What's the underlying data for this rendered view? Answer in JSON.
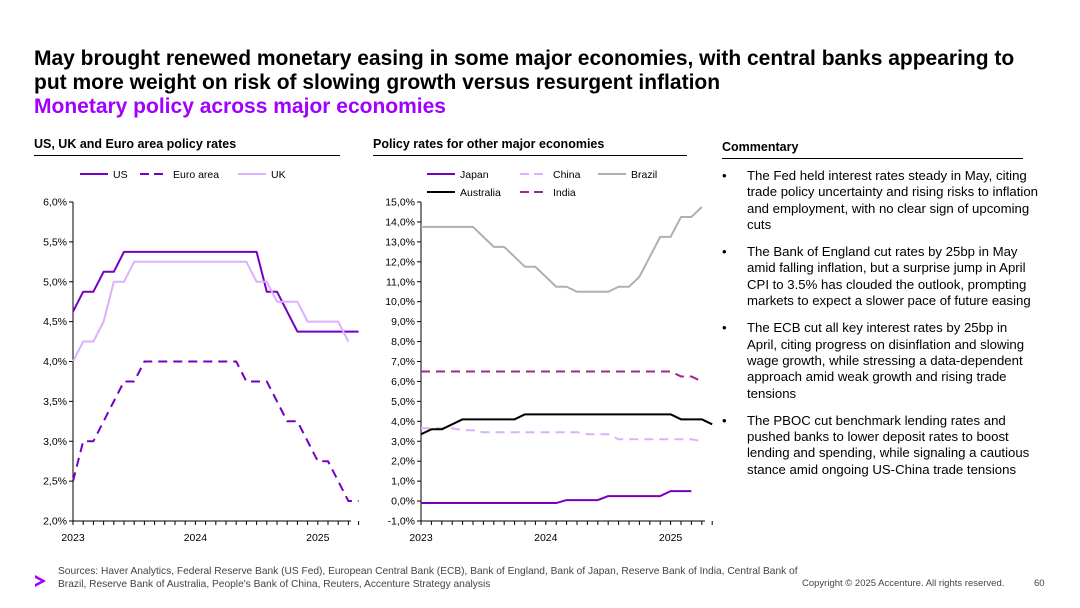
{
  "title": "May brought renewed monetary easing in some major economies, with central banks appearing to put more weight on risk of slowing growth versus resurgent inflation",
  "subtitle": "Monetary policy across major economies",
  "left_panel": {
    "heading": "US, UK and Euro area policy rates"
  },
  "middle_panel": {
    "heading": "Policy rates for other major economies"
  },
  "commentary": {
    "heading": "Commentary",
    "bullet": "•",
    "items": [
      "The Fed held interest rates steady in May, citing trade policy uncertainty and rising risks to inflation and employment, with no clear sign of upcoming cuts",
      "The Bank of England cut rates by 25bp in May amid falling inflation, but a surprise jump in April CPI to 3.5% has clouded the outlook, prompting markets to expect a slower pace of future easing",
      "The ECB cut all key interest rates by 25bp in April, citing progress on disinflation and slowing wage growth, while stressing a data-dependent approach amid weak growth and rising trade tensions",
      "The PBOC cut benchmark lending rates and pushed banks to lower deposit rates to boost lending and spending, while signaling a cautious stance amid ongoing US-China trade tensions"
    ]
  },
  "footer": {
    "sources": "Sources: Haver Analytics, Federal Reserve Bank (US Fed), European Central Bank (ECB), Bank of England, Bank of Japan, Reserve Bank of India, Central Bank of Brazil, Reserve Bank of Australia, People's Bank of China, Reuters, Accenture Strategy analysis",
    "copyright": "Copyright © 2025 Accenture. All rights reserved.",
    "page": "60"
  },
  "colors": {
    "accent": "#a100ff",
    "dark_purple": "#7500c0",
    "light_purple": "#dcafff",
    "gray": "#b0b0b0",
    "black": "#000000",
    "indian_purple": "#a0278c"
  },
  "chart_data": [
    {
      "type": "line",
      "title": "US, UK and Euro area policy rates",
      "x_labels": [
        "2023",
        "2024",
        "2025"
      ],
      "x_label_index": [
        0,
        12,
        24
      ],
      "ylim": [
        2.0,
        6.0
      ],
      "y_ticks": [
        "2,0%",
        "2,5%",
        "3,0%",
        "3,5%",
        "4,0%",
        "4,5%",
        "5,0%",
        "5,5%",
        "6,0%"
      ],
      "series": [
        {
          "name": "US",
          "color": "#7500c0",
          "dash": "",
          "width": 2,
          "values": [
            4.625,
            4.875,
            4.875,
            5.125,
            5.125,
            5.375,
            5.375,
            5.375,
            5.375,
            5.375,
            5.375,
            5.375,
            5.375,
            5.375,
            5.375,
            5.375,
            5.375,
            5.375,
            5.375,
            4.875,
            4.875,
            4.625,
            4.375,
            4.375,
            4.375,
            4.375,
            4.375,
            4.375,
            4.375
          ]
        },
        {
          "name": "Euro area",
          "color": "#7500c0",
          "dash": "9,6",
          "width": 2,
          "values": [
            2.5,
            3.0,
            3.0,
            3.25,
            3.5,
            3.75,
            3.75,
            4.0,
            4.0,
            4.0,
            4.0,
            4.0,
            4.0,
            4.0,
            4.0,
            4.0,
            4.0,
            3.75,
            3.75,
            3.75,
            3.5,
            3.25,
            3.25,
            3.0,
            2.75,
            2.75,
            2.5,
            2.25,
            2.25
          ]
        },
        {
          "name": "UK",
          "color": "#dcafff",
          "dash": "",
          "width": 2,
          "values": [
            4.0,
            4.25,
            4.25,
            4.5,
            5.0,
            5.0,
            5.25,
            5.25,
            5.25,
            5.25,
            5.25,
            5.25,
            5.25,
            5.25,
            5.25,
            5.25,
            5.25,
            5.25,
            5.0,
            5.0,
            4.75,
            4.75,
            4.75,
            4.5,
            4.5,
            4.5,
            4.5,
            4.25
          ]
        }
      ]
    },
    {
      "type": "line",
      "title": "Policy rates for other major economies",
      "x_labels": [
        "2023",
        "2024",
        "2025"
      ],
      "x_label_index": [
        0,
        12,
        24
      ],
      "ylim": [
        -1.0,
        15.0
      ],
      "y_ticks": [
        "-1,0%",
        "0,0%",
        "1,0%",
        "2,0%",
        "3,0%",
        "4,0%",
        "5,0%",
        "6,0%",
        "7,0%",
        "8,0%",
        "9,0%",
        "10,0%",
        "11,0%",
        "12,0%",
        "13,0%",
        "14,0%",
        "15,0%"
      ],
      "series": [
        {
          "name": "Japan",
          "color": "#7500c0",
          "dash": "",
          "width": 2,
          "values": [
            -0.1,
            -0.1,
            -0.1,
            -0.1,
            -0.1,
            -0.1,
            -0.1,
            -0.1,
            -0.1,
            -0.1,
            -0.1,
            -0.1,
            -0.1,
            -0.1,
            0.05,
            0.05,
            0.05,
            0.05,
            0.25,
            0.25,
            0.25,
            0.25,
            0.25,
            0.25,
            0.5,
            0.5,
            0.5
          ]
        },
        {
          "name": "China",
          "color": "#dcafff",
          "dash": "9,6",
          "width": 2,
          "values": [
            3.65,
            3.65,
            3.65,
            3.65,
            3.55,
            3.55,
            3.45,
            3.45,
            3.45,
            3.45,
            3.45,
            3.45,
            3.45,
            3.45,
            3.45,
            3.45,
            3.35,
            3.35,
            3.35,
            3.1,
            3.1,
            3.1,
            3.1,
            3.1,
            3.1,
            3.1,
            3.1,
            3.0
          ]
        },
        {
          "name": "Brazil",
          "color": "#b0b0b0",
          "dash": "",
          "width": 2,
          "values": [
            13.75,
            13.75,
            13.75,
            13.75,
            13.75,
            13.75,
            13.25,
            12.75,
            12.75,
            12.25,
            11.75,
            11.75,
            11.25,
            10.75,
            10.75,
            10.5,
            10.5,
            10.5,
            10.5,
            10.75,
            10.75,
            11.25,
            12.25,
            13.25,
            13.25,
            14.25,
            14.25,
            14.75
          ]
        },
        {
          "name": "Australia",
          "color": "#000000",
          "dash": "",
          "width": 2,
          "values": [
            3.35,
            3.6,
            3.6,
            3.85,
            4.1,
            4.1,
            4.1,
            4.1,
            4.1,
            4.1,
            4.35,
            4.35,
            4.35,
            4.35,
            4.35,
            4.35,
            4.35,
            4.35,
            4.35,
            4.35,
            4.35,
            4.35,
            4.35,
            4.35,
            4.35,
            4.1,
            4.1,
            4.1,
            3.85
          ]
        },
        {
          "name": "India",
          "color": "#a0278c",
          "dash": "9,6",
          "width": 2,
          "values": [
            6.5,
            6.5,
            6.5,
            6.5,
            6.5,
            6.5,
            6.5,
            6.5,
            6.5,
            6.5,
            6.5,
            6.5,
            6.5,
            6.5,
            6.5,
            6.5,
            6.5,
            6.5,
            6.5,
            6.5,
            6.5,
            6.5,
            6.5,
            6.5,
            6.5,
            6.25,
            6.25,
            6.0
          ]
        }
      ]
    }
  ]
}
